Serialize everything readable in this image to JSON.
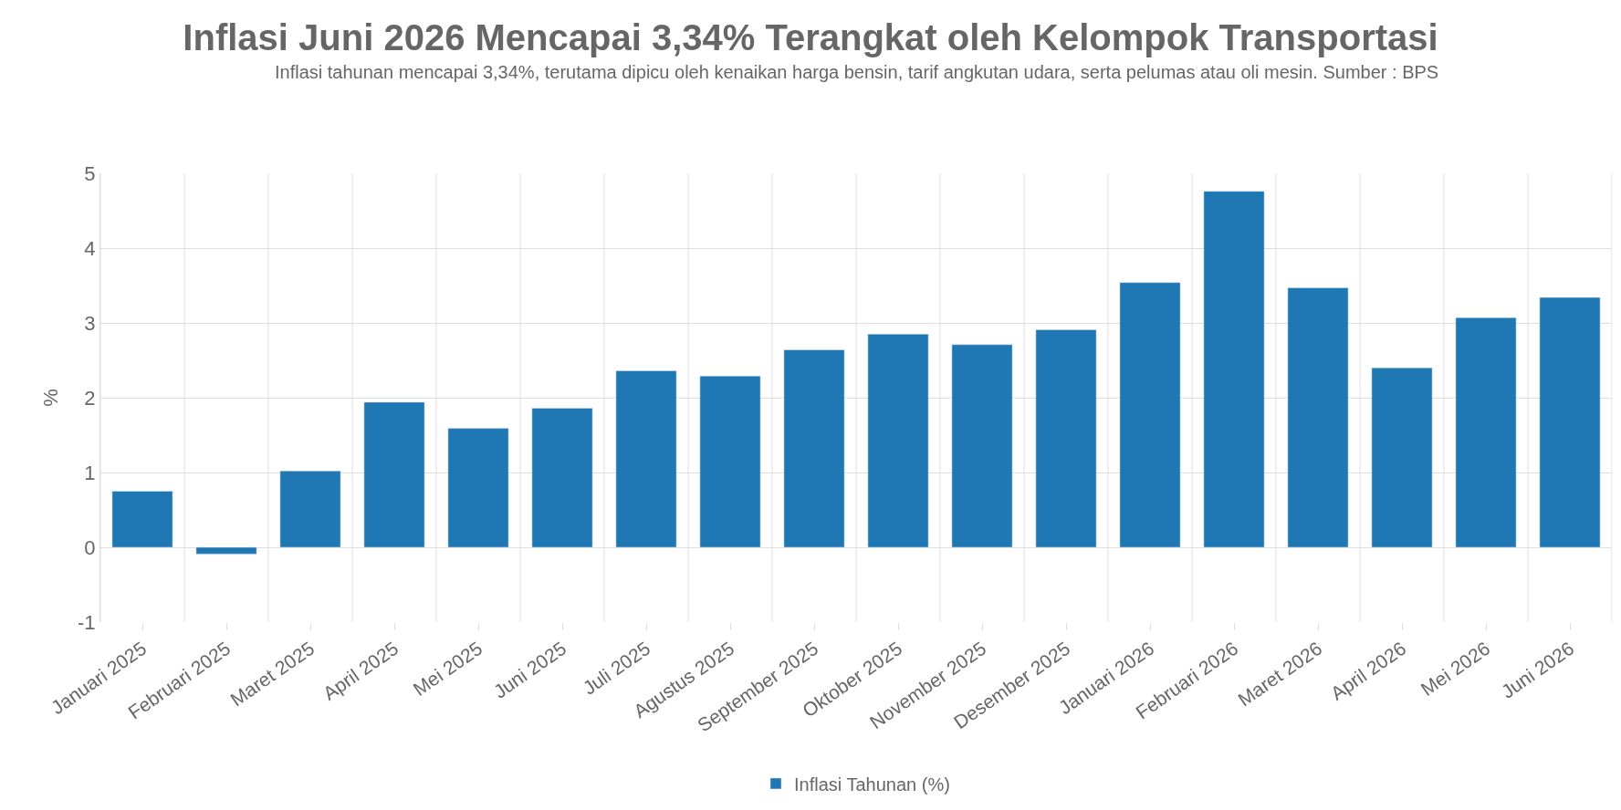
{
  "chart_data": {
    "type": "bar",
    "title": "Inflasi Juni 2026 Mencapai 3,34% Terangkat oleh Kelompok Transportasi",
    "subtitle": "Inflasi tahunan mencapai 3,34%, terutama dipicu oleh kenaikan harga bensin, tarif angkutan udara, serta pelumas atau oli mesin. Sumber : BPS",
    "ylabel": "%",
    "categories": [
      "Januari 2025",
      "Februari 2025",
      "Maret 2025",
      "April 2025",
      "Mei 2025",
      "Juni 2025",
      "Juli 2025",
      "Agustus 2025",
      "September 2025",
      "Oktober 2025",
      "November 2025",
      "Desember 2025",
      "Januari 2026",
      "Februari 2026",
      "Maret 2026",
      "April 2026",
      "Mei 2026",
      "Juni 2026"
    ],
    "series": [
      {
        "name": "Inflasi Tahunan (%)",
        "color": "#1f77b4",
        "values": [
          0.75,
          -0.09,
          1.02,
          1.94,
          1.59,
          1.86,
          2.36,
          2.29,
          2.64,
          2.85,
          2.71,
          2.91,
          3.54,
          4.76,
          3.47,
          2.4,
          3.07,
          3.34
        ]
      }
    ],
    "ylim": [
      -1,
      5
    ],
    "yticks": [
      -1,
      0,
      1,
      2,
      3,
      4,
      5
    ],
    "grid": true,
    "legend": "bottom"
  }
}
